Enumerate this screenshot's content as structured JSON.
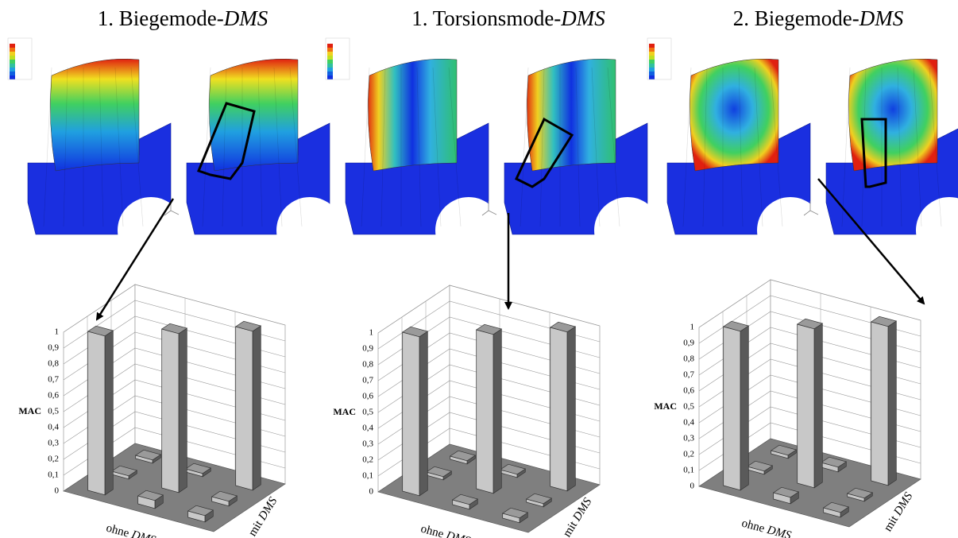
{
  "chart_data": [
    {
      "type": "bar3d",
      "title": [
        "1. Biegemode-",
        "DMS"
      ],
      "ylabel": "MAC",
      "xlabel": [
        "ohne ",
        "DMS"
      ],
      "zlabel": [
        "mit ",
        "DMS"
      ],
      "ylim": [
        0,
        1
      ],
      "yticks": [
        0,
        {
          "value": 0.1,
          "label": "0,1"
        },
        {
          "value": 0.2,
          "label": "0,2"
        },
        {
          "value": 0.3,
          "label": "0,3"
        },
        {
          "value": 0.4,
          "label": "0,4"
        },
        {
          "value": 0.5,
          "label": "0,5"
        },
        {
          "value": 0.6,
          "label": "0,6"
        },
        {
          "value": 0.7,
          "label": "0,7"
        },
        {
          "value": 0.8,
          "label": "0,8"
        },
        {
          "value": 0.9,
          "label": "0,9"
        },
        1
      ],
      "color": "#c8c8c8",
      "floor_color": "#7f7f7f",
      "matrix": [
        [
          1,
          0.02,
          0.02
        ],
        [
          0.05,
          1,
          0.02
        ],
        [
          0.04,
          0.03,
          1
        ]
      ]
    },
    {
      "type": "bar3d",
      "title": [
        "1. Torsionsmode-",
        "DMS"
      ],
      "ylabel": "MAC",
      "xlabel": [
        "ohne ",
        "DMS"
      ],
      "zlabel": [
        "mit ",
        "DMS"
      ],
      "ylim": [
        0,
        1
      ],
      "yticks": [
        0,
        {
          "value": 0.1,
          "label": "0,1"
        },
        {
          "value": 0.2,
          "label": "0,2"
        },
        {
          "value": 0.3,
          "label": "0,3"
        },
        {
          "value": 0.4,
          "label": "0,4"
        },
        {
          "value": 0.5,
          "label": "0,5"
        },
        {
          "value": 0.6,
          "label": "0,6"
        },
        {
          "value": 0.7,
          "label": "0,7"
        },
        {
          "value": 0.8,
          "label": "0,8"
        },
        {
          "value": 0.9,
          "label": "0,9"
        },
        1
      ],
      "color": "#c8c8c8",
      "floor_color": "#7f7f7f",
      "matrix": [
        [
          1,
          0.02,
          0.02
        ],
        [
          0.03,
          1,
          0.02
        ],
        [
          0.03,
          0.02,
          1
        ]
      ]
    },
    {
      "type": "bar3d",
      "title": [
        "2. Biegemode-",
        "DMS"
      ],
      "ylabel": "MAC",
      "xlabel": [
        "ohne ",
        "DMS"
      ],
      "zlabel": [
        "mit ",
        "DMS"
      ],
      "ylim": [
        0,
        1
      ],
      "yticks": [
        0,
        {
          "value": 0.1,
          "label": "0,1"
        },
        {
          "value": 0.2,
          "label": "0,2"
        },
        {
          "value": 0.3,
          "label": "0,3"
        },
        {
          "value": 0.4,
          "label": "0,4"
        },
        {
          "value": 0.5,
          "label": "0,5"
        },
        {
          "value": 0.6,
          "label": "0,6"
        },
        {
          "value": 0.7,
          "label": "0,7"
        },
        {
          "value": 0.8,
          "label": "0,8"
        },
        {
          "value": 0.9,
          "label": "0,9"
        },
        1
      ],
      "color": "#c8c8c8",
      "floor_color": "#7f7f7f",
      "matrix": [
        [
          1,
          0.02,
          0.02
        ],
        [
          0.04,
          1,
          0.03
        ],
        [
          0.03,
          0.02,
          1
        ]
      ]
    }
  ]
}
